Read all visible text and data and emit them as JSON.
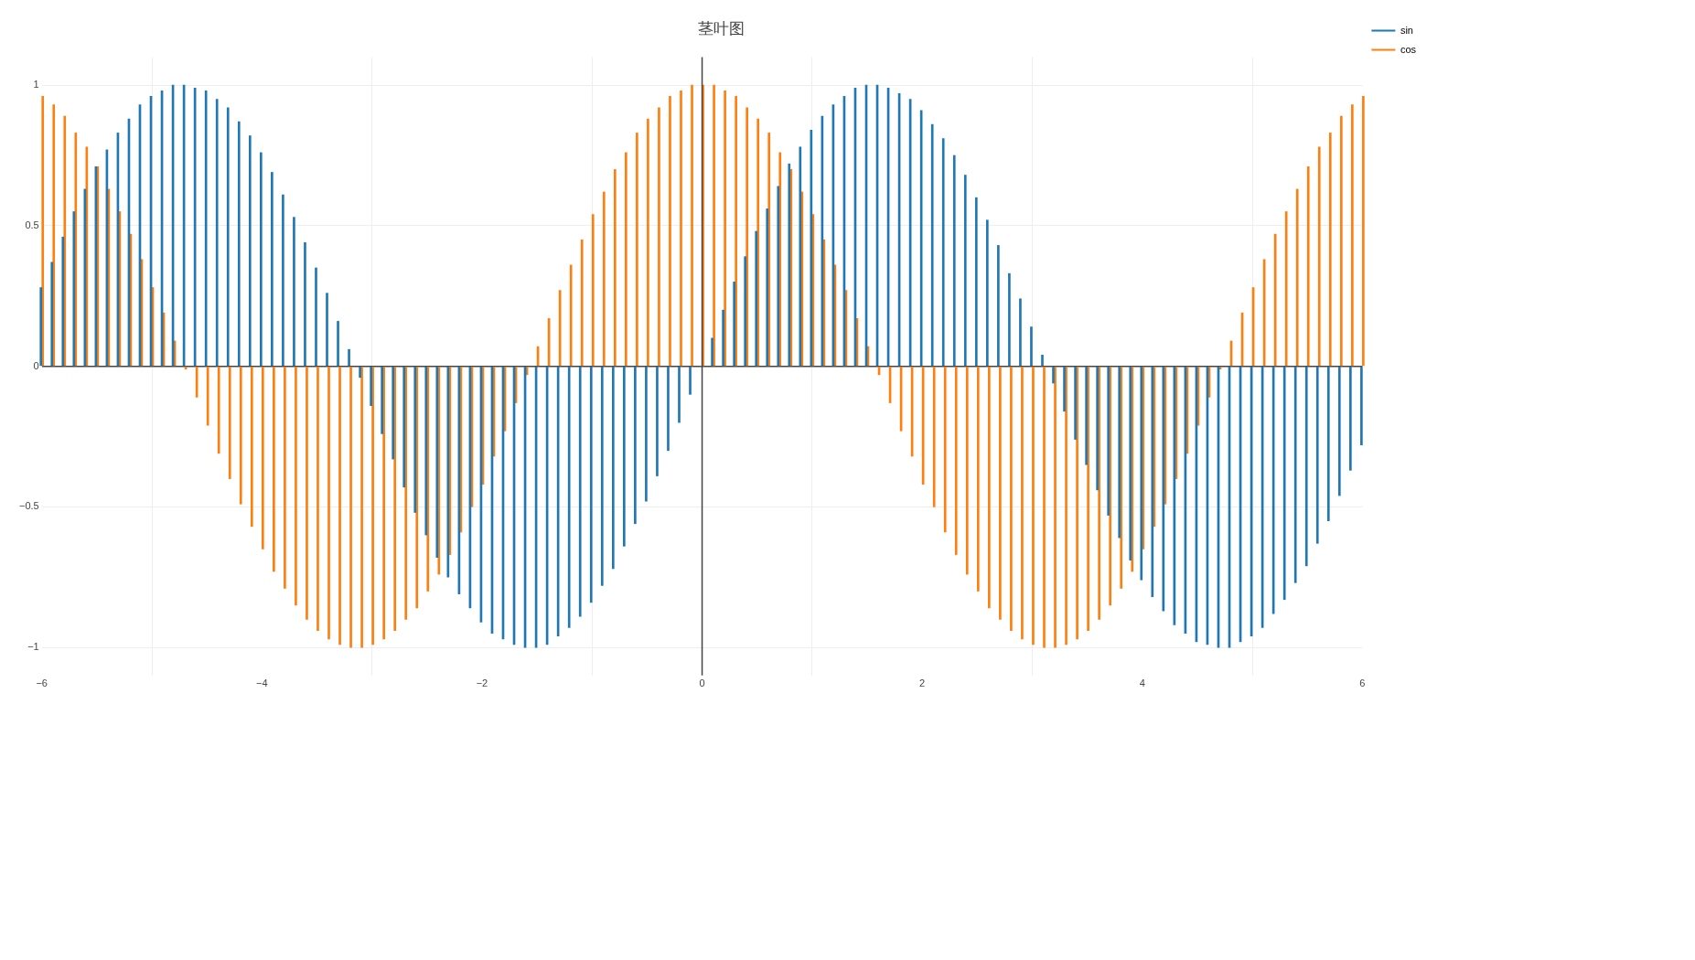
{
  "chart_data": {
    "type": "bar",
    "title": "茎叶图",
    "x": [
      -6.0,
      -5.9,
      -5.8,
      -5.7,
      -5.6,
      -5.5,
      -5.4,
      -5.3,
      -5.2,
      -5.1,
      -5.0,
      -4.9,
      -4.8,
      -4.7,
      -4.6,
      -4.5,
      -4.4,
      -4.3,
      -4.2,
      -4.1,
      -4.0,
      -3.9,
      -3.8,
      -3.7,
      -3.6,
      -3.5,
      -3.4,
      -3.3,
      -3.2,
      -3.1,
      -3.0,
      -2.9,
      -2.8,
      -2.7,
      -2.6,
      -2.5,
      -2.4,
      -2.3,
      -2.2,
      -2.1,
      -2.0,
      -1.9,
      -1.8,
      -1.7,
      -1.6,
      -1.5,
      -1.4,
      -1.3,
      -1.2,
      -1.1,
      -1.0,
      -0.9,
      -0.8,
      -0.7,
      -0.6,
      -0.5,
      -0.4,
      -0.3,
      -0.2,
      -0.1,
      0.0,
      0.1,
      0.2,
      0.3,
      0.4,
      0.5,
      0.6,
      0.7,
      0.8,
      0.9,
      1.0,
      1.1,
      1.2,
      1.3,
      1.4,
      1.5,
      1.6,
      1.7,
      1.8,
      1.9,
      2.0,
      2.1,
      2.2,
      2.3,
      2.4,
      2.5,
      2.6,
      2.7,
      2.8,
      2.9,
      3.0,
      3.1,
      3.2,
      3.3,
      3.4,
      3.5,
      3.6,
      3.7,
      3.8,
      3.9,
      4.0,
      4.1,
      4.2,
      4.3,
      4.4,
      4.5,
      4.6,
      4.7,
      4.8,
      4.9,
      5.0,
      5.1,
      5.2,
      5.3,
      5.4,
      5.5,
      5.6,
      5.7,
      5.8,
      5.9,
      6.0
    ],
    "series": [
      {
        "name": "sin",
        "color": "#1f77b4",
        "values": [
          0.28,
          0.37,
          0.46,
          0.55,
          0.63,
          0.71,
          0.77,
          0.83,
          0.88,
          0.93,
          0.96,
          0.98,
          1.0,
          1.0,
          0.99,
          0.98,
          0.95,
          0.92,
          0.87,
          0.82,
          0.76,
          0.69,
          0.61,
          0.53,
          0.44,
          0.35,
          0.26,
          0.16,
          0.06,
          -0.04,
          -0.14,
          -0.24,
          -0.33,
          -0.43,
          -0.52,
          -0.6,
          -0.68,
          -0.75,
          -0.81,
          -0.86,
          -0.91,
          -0.95,
          -0.97,
          -0.99,
          -1.0,
          -1.0,
          -0.99,
          -0.96,
          -0.93,
          -0.89,
          -0.84,
          -0.78,
          -0.72,
          -0.64,
          -0.56,
          -0.48,
          -0.39,
          -0.3,
          -0.2,
          -0.1,
          0.0,
          0.1,
          0.2,
          0.3,
          0.39,
          0.48,
          0.56,
          0.64,
          0.72,
          0.78,
          0.84,
          0.89,
          0.93,
          0.96,
          0.99,
          1.0,
          1.0,
          0.99,
          0.97,
          0.95,
          0.91,
          0.86,
          0.81,
          0.75,
          0.68,
          0.6,
          0.52,
          0.43,
          0.33,
          0.24,
          0.14,
          0.04,
          -0.06,
          -0.16,
          -0.26,
          -0.35,
          -0.44,
          -0.53,
          -0.61,
          -0.69,
          -0.76,
          -0.82,
          -0.87,
          -0.92,
          -0.95,
          -0.98,
          -0.99,
          -1.0,
          -1.0,
          -0.98,
          -0.96,
          -0.93,
          -0.88,
          -0.83,
          -0.77,
          -0.71,
          -0.63,
          -0.55,
          -0.46,
          -0.37,
          -0.28
        ]
      },
      {
        "name": "cos",
        "color": "#ff7f0e",
        "values": [
          0.96,
          0.93,
          0.89,
          0.83,
          0.78,
          0.71,
          0.63,
          0.55,
          0.47,
          0.38,
          0.28,
          0.19,
          0.09,
          -0.01,
          -0.11,
          -0.21,
          -0.31,
          -0.4,
          -0.49,
          -0.57,
          -0.65,
          -0.73,
          -0.79,
          -0.85,
          -0.9,
          -0.94,
          -0.97,
          -0.99,
          -1.0,
          -1.0,
          -0.99,
          -0.97,
          -0.94,
          -0.9,
          -0.86,
          -0.8,
          -0.74,
          -0.67,
          -0.59,
          -0.5,
          -0.42,
          -0.32,
          -0.23,
          -0.13,
          -0.03,
          0.07,
          0.17,
          0.27,
          0.36,
          0.45,
          0.54,
          0.62,
          0.7,
          0.76,
          0.83,
          0.88,
          0.92,
          0.96,
          0.98,
          1.0,
          1.0,
          1.0,
          0.98,
          0.96,
          0.92,
          0.88,
          0.83,
          0.76,
          0.7,
          0.62,
          0.54,
          0.45,
          0.36,
          0.27,
          0.17,
          0.07,
          -0.03,
          -0.13,
          -0.23,
          -0.32,
          -0.42,
          -0.5,
          -0.59,
          -0.67,
          -0.74,
          -0.8,
          -0.86,
          -0.9,
          -0.94,
          -0.97,
          -0.99,
          -1.0,
          -1.0,
          -0.99,
          -0.97,
          -0.94,
          -0.9,
          -0.85,
          -0.79,
          -0.73,
          -0.65,
          -0.57,
          -0.49,
          -0.4,
          -0.31,
          -0.21,
          -0.11,
          -0.01,
          0.09,
          0.19,
          0.28,
          0.38,
          0.47,
          0.55,
          0.63,
          0.71,
          0.78,
          0.83,
          0.89,
          0.93,
          0.96
        ]
      }
    ],
    "xlim": [
      -6,
      6
    ],
    "xticks": [
      {
        "value": -6,
        "label": "−6"
      },
      {
        "value": -4,
        "label": "−4"
      },
      {
        "value": -2,
        "label": "−2"
      },
      0,
      2,
      4,
      6
    ],
    "ylim": [
      -1.1,
      1.1
    ],
    "yticks": [
      {
        "value": -1,
        "label": "−1"
      },
      {
        "value": -0.5,
        "label": "−0.5"
      },
      0,
      0.5,
      1
    ],
    "ref_lines": [
      {
        "axis": "x",
        "value": 0,
        "color": "#444444"
      }
    ],
    "grid": true,
    "legend": "top right"
  }
}
